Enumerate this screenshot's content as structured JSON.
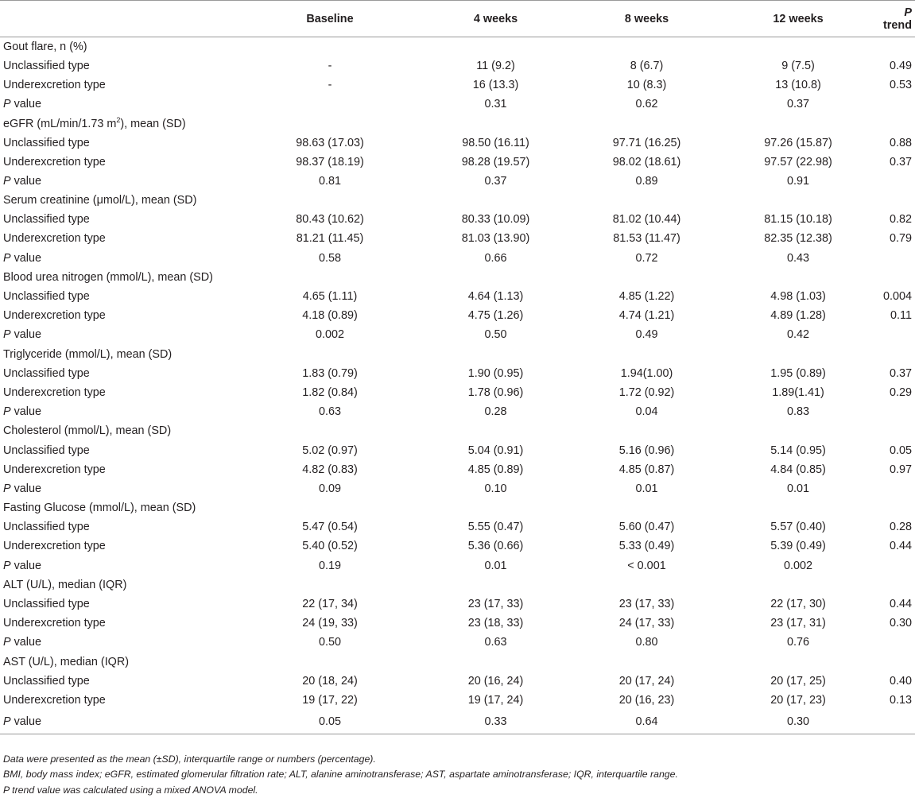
{
  "header": {
    "label": "",
    "columns": [
      "Baseline",
      "4 weeks",
      "8 weeks",
      "12 weeks"
    ],
    "ptrend_italic": "P",
    "ptrend_rest": " trend"
  },
  "sections": [
    {
      "title": "Gout flare, n (%)",
      "rows": [
        {
          "label": "Unclassified type",
          "values": [
            "-",
            "11 (9.2)",
            "8 (6.7)",
            "9 (7.5)"
          ],
          "ptrend": "0.49"
        },
        {
          "label": "Underexcretion type",
          "values": [
            "-",
            "16 (13.3)",
            "10 (8.3)",
            "13 (10.8)"
          ],
          "ptrend": "0.53"
        },
        {
          "label": "P value",
          "values": [
            "",
            "0.31",
            "0.62",
            "0.37"
          ],
          "ptrend": ""
        }
      ]
    },
    {
      "title": "eGFR (mL/min/1.73 m2), mean (SD)",
      "title_pre": "eGFR (mL/min/1.73 m",
      "title_sup": "2",
      "title_post": "), mean (SD)",
      "rows": [
        {
          "label": "Unclassified type",
          "values": [
            "98.63 (17.03)",
            "98.50 (16.11)",
            "97.71 (16.25)",
            "97.26 (15.87)"
          ],
          "ptrend": "0.88"
        },
        {
          "label": "Underexcretion type",
          "values": [
            "98.37 (18.19)",
            "98.28 (19.57)",
            "98.02 (18.61)",
            "97.57 (22.98)"
          ],
          "ptrend": "0.37"
        },
        {
          "label": "P value",
          "values": [
            "0.81",
            "0.37",
            "0.89",
            "0.91"
          ],
          "ptrend": ""
        }
      ]
    },
    {
      "title": "Serum creatinine (μmol/L), mean (SD)",
      "rows": [
        {
          "label": "Unclassified type",
          "values": [
            "80.43 (10.62)",
            "80.33 (10.09)",
            "81.02 (10.44)",
            "81.15 (10.18)"
          ],
          "ptrend": "0.82"
        },
        {
          "label": "Underexcretion type",
          "values": [
            "81.21 (11.45)",
            "81.03 (13.90)",
            "81.53 (11.47)",
            "82.35 (12.38)"
          ],
          "ptrend": "0.79"
        },
        {
          "label": "P value",
          "values": [
            "0.58",
            "0.66",
            "0.72",
            "0.43"
          ],
          "ptrend": ""
        }
      ]
    },
    {
      "title": "Blood urea nitrogen (mmol/L), mean (SD)",
      "rows": [
        {
          "label": "Unclassified type",
          "values": [
            "4.65 (1.11)",
            "4.64 (1.13)",
            "4.85 (1.22)",
            "4.98 (1.03)"
          ],
          "ptrend": "0.004"
        },
        {
          "label": "Underexcretion type",
          "values": [
            "4.18 (0.89)",
            "4.75 (1.26)",
            "4.74 (1.21)",
            "4.89 (1.28)"
          ],
          "ptrend": "0.11"
        },
        {
          "label": "P value",
          "values": [
            "0.002",
            "0.50",
            "0.49",
            "0.42"
          ],
          "ptrend": ""
        }
      ]
    },
    {
      "title": "Triglyceride (mmol/L), mean (SD)",
      "rows": [
        {
          "label": "Unclassified type",
          "values": [
            "1.83 (0.79)",
            "1.90 (0.95)",
            "1.94(1.00)",
            "1.95 (0.89)"
          ],
          "ptrend": "0.37"
        },
        {
          "label": "Underexcretion type",
          "values": [
            "1.82 (0.84)",
            "1.78 (0.96)",
            "1.72 (0.92)",
            "1.89(1.41)"
          ],
          "ptrend": "0.29"
        },
        {
          "label": "P value",
          "values": [
            "0.63",
            "0.28",
            "0.04",
            "0.83"
          ],
          "ptrend": ""
        }
      ]
    },
    {
      "title": "Cholesterol (mmol/L), mean (SD)",
      "rows": [
        {
          "label": "Unclassified type",
          "values": [
            "5.02 (0.97)",
            "5.04 (0.91)",
            "5.16 (0.96)",
            "5.14 (0.95)"
          ],
          "ptrend": "0.05"
        },
        {
          "label": "Underexcretion type",
          "values": [
            "4.82 (0.83)",
            "4.85 (0.89)",
            "4.85 (0.87)",
            "4.84 (0.85)"
          ],
          "ptrend": "0.97"
        },
        {
          "label": "P value",
          "values": [
            "0.09",
            "0.10",
            "0.01",
            "0.01"
          ],
          "ptrend": ""
        }
      ]
    },
    {
      "title": "Fasting Glucose (mmol/L), mean (SD)",
      "rows": [
        {
          "label": "Unclassified type",
          "values": [
            "5.47 (0.54)",
            "5.55 (0.47)",
            "5.60 (0.47)",
            "5.57 (0.40)"
          ],
          "ptrend": "0.28"
        },
        {
          "label": "Underexcretion type",
          "values": [
            "5.40 (0.52)",
            "5.36 (0.66)",
            "5.33 (0.49)",
            "5.39 (0.49)"
          ],
          "ptrend": "0.44"
        },
        {
          "label": "P value",
          "values": [
            "0.19",
            "0.01",
            "< 0.001",
            "0.002"
          ],
          "ptrend": ""
        }
      ]
    },
    {
      "title": "ALT (U/L), median (IQR)",
      "rows": [
        {
          "label": "Unclassified type",
          "values": [
            "22 (17, 34)",
            "23 (17, 33)",
            "23 (17, 33)",
            "22 (17, 30)"
          ],
          "ptrend": "0.44"
        },
        {
          "label": "Underexcretion type",
          "values": [
            "24 (19, 33)",
            "23 (18, 33)",
            "24 (17, 33)",
            "23 (17, 31)"
          ],
          "ptrend": "0.30"
        },
        {
          "label": "P value",
          "values": [
            "0.50",
            "0.63",
            "0.80",
            "0.76"
          ],
          "ptrend": ""
        }
      ]
    },
    {
      "title": "AST (U/L), median (IQR)",
      "rows": [
        {
          "label": "Unclassified type",
          "values": [
            "20 (18, 24)",
            "20 (16, 24)",
            "20 (17, 24)",
            "20 (17, 25)"
          ],
          "ptrend": "0.40"
        },
        {
          "label": "Underexcretion type",
          "values": [
            "19 (17, 22)",
            "19 (17, 24)",
            "20 (16, 23)",
            "20 (17, 23)"
          ],
          "ptrend": "0.13"
        },
        {
          "label": "P value",
          "values": [
            "0.05",
            "0.33",
            "0.64",
            "0.30"
          ],
          "ptrend": ""
        }
      ]
    }
  ],
  "footnotes": [
    "Data were presented as the mean (±SD), interquartile range or numbers (percentage).",
    "BMI, body mass index; eGFR, estimated glomerular filtration rate; ALT, alanine aminotransferase; AST, aspartate aminotransferase; IQR, interquartile range.",
    "P trend value was calculated using a mixed ANOVA model."
  ]
}
